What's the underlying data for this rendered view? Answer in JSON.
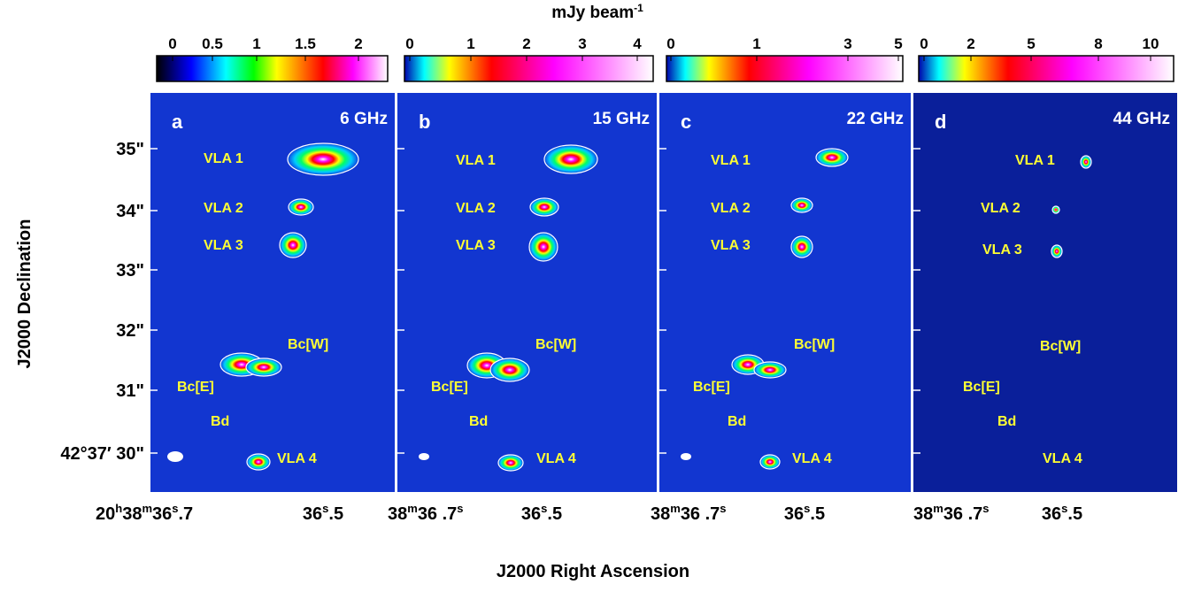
{
  "colorbar_label": {
    "main": "mJy beam",
    "exp": "-1"
  },
  "panels": [
    {
      "letter": "a",
      "freq": "6 GHz",
      "colorbar_ticks": [
        0,
        0.5,
        1,
        1.5,
        2
      ],
      "sources": [
        "VLA 1",
        "VLA 2",
        "VLA 3",
        "Bc[W]",
        "Bc[E]",
        "Bd",
        "VLA 4"
      ]
    },
    {
      "letter": "b",
      "freq": "15 GHz",
      "colorbar_ticks": [
        0,
        1,
        2,
        3,
        4
      ],
      "sources": [
        "VLA 1",
        "VLA 2",
        "VLA 3",
        "Bc[W]",
        "Bc[E]",
        "Bd",
        "VLA 4"
      ]
    },
    {
      "letter": "c",
      "freq": "22 GHz",
      "colorbar_ticks": [
        0,
        1,
        3,
        5
      ],
      "sources": [
        "VLA 1",
        "VLA 2",
        "VLA 3",
        "Bc[W]",
        "Bc[E]",
        "Bd",
        "VLA 4"
      ]
    },
    {
      "letter": "d",
      "freq": "44 GHz",
      "colorbar_ticks": [
        0,
        2,
        5,
        8,
        10
      ],
      "sources": [
        "VLA 1",
        "VLA 2",
        "VLA 3",
        "Bc[W]",
        "Bc[E]",
        "Bd",
        "VLA 4"
      ]
    }
  ],
  "y_ticks": [
    "35\"",
    "34\"",
    "33\"",
    "32\"",
    "31\"",
    "42°37′ 30\""
  ],
  "x_ticks": [
    [
      "20",
      "h",
      "38",
      "m",
      "36",
      "s",
      ".7"
    ],
    [
      "36",
      "s",
      ".5"
    ],
    [
      "38",
      "m",
      "36 .7",
      "s"
    ],
    [
      "36",
      "s",
      ".5"
    ],
    [
      "38",
      "m",
      "36 .7",
      "s"
    ],
    [
      "36",
      "s",
      ".5"
    ],
    [
      "38",
      "m",
      "36 .7",
      "s"
    ],
    [
      "36",
      "s",
      ".5"
    ]
  ],
  "y_label": "J2000 Declination",
  "x_label": "J2000 Right Ascension"
}
